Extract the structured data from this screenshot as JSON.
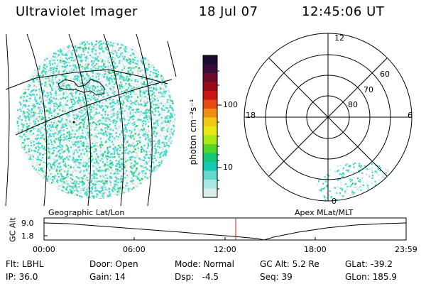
{
  "header": {
    "instrument": "Ultraviolet Imager",
    "date": "18 Jul 07",
    "time": "12:45:06 UT"
  },
  "colorbar": {
    "unit_label": "photon cm⁻²s⁻¹",
    "ticks": [
      "100",
      "10"
    ],
    "colors": [
      "#1a0a2e",
      "#3a0a3a",
      "#6a0a28",
      "#9a0a14",
      "#c81414",
      "#e84a14",
      "#f08c14",
      "#f0c814",
      "#e8e814",
      "#a8e814",
      "#50d828",
      "#14c878",
      "#14c8b4",
      "#64d8d0",
      "#a8e8e4",
      "#d8ecec"
    ]
  },
  "geo_panel": {
    "label": "Geographic Lat/Lon"
  },
  "polar_panel": {
    "label": "Apex  MLat/MLT",
    "ring_labels": [
      "80",
      "70",
      "60"
    ],
    "mlt_labels": [
      "12",
      "18",
      "6",
      "0"
    ]
  },
  "altitude_strip": {
    "axis_label": "GC Alt",
    "y_ticks": [
      "9.0",
      "1.8"
    ],
    "x_ticks": [
      "00:00",
      "06:00",
      "12:00",
      "18:00",
      "23:59"
    ],
    "marker_time": "12:45",
    "marker_color": "#c81e1e"
  },
  "status": {
    "row1": [
      {
        "key": "Flt:",
        "value": "LBHL"
      },
      {
        "key": "Door:",
        "value": "Open"
      },
      {
        "key": "Mode:",
        "value": "Normal"
      },
      {
        "key": "GC Alt:",
        "value": "5.2 Re"
      },
      {
        "key": "GLat:",
        "value": "-39.2"
      }
    ],
    "row2": [
      {
        "key": "IP:",
        "value": "36.0"
      },
      {
        "key": "Gain:",
        "value": "14"
      },
      {
        "key": "Dsp:",
        "value": "  -4.5"
      },
      {
        "key": "Seq:",
        "value": "39"
      },
      {
        "key": "GLon:",
        "value": "185.9"
      }
    ]
  },
  "colors": {
    "speckle_cyan": "#3cd8c8",
    "speckle_green": "#28c850",
    "speckle_light": "#c8ecea",
    "speckle_gray": "#d2d2d2"
  }
}
